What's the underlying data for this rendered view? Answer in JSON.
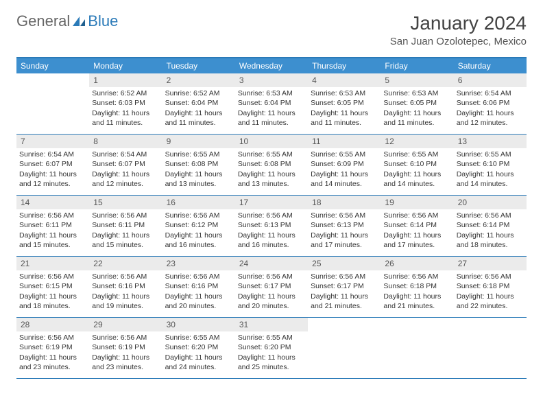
{
  "logo": {
    "general": "General",
    "blue": "Blue"
  },
  "title": "January 2024",
  "location": "San Juan Ozolotepec, Mexico",
  "colors": {
    "header_bg": "#3d8fcf",
    "border": "#2a7ab8",
    "daynum_bg": "#ebebeb",
    "text": "#333333",
    "header_text": "#ffffff"
  },
  "day_headers": [
    "Sunday",
    "Monday",
    "Tuesday",
    "Wednesday",
    "Thursday",
    "Friday",
    "Saturday"
  ],
  "weeks": [
    [
      {
        "n": "",
        "sr": "",
        "ss": "",
        "dl": ""
      },
      {
        "n": "1",
        "sr": "Sunrise: 6:52 AM",
        "ss": "Sunset: 6:03 PM",
        "dl": "Daylight: 11 hours and 11 minutes."
      },
      {
        "n": "2",
        "sr": "Sunrise: 6:52 AM",
        "ss": "Sunset: 6:04 PM",
        "dl": "Daylight: 11 hours and 11 minutes."
      },
      {
        "n": "3",
        "sr": "Sunrise: 6:53 AM",
        "ss": "Sunset: 6:04 PM",
        "dl": "Daylight: 11 hours and 11 minutes."
      },
      {
        "n": "4",
        "sr": "Sunrise: 6:53 AM",
        "ss": "Sunset: 6:05 PM",
        "dl": "Daylight: 11 hours and 11 minutes."
      },
      {
        "n": "5",
        "sr": "Sunrise: 6:53 AM",
        "ss": "Sunset: 6:05 PM",
        "dl": "Daylight: 11 hours and 11 minutes."
      },
      {
        "n": "6",
        "sr": "Sunrise: 6:54 AM",
        "ss": "Sunset: 6:06 PM",
        "dl": "Daylight: 11 hours and 12 minutes."
      }
    ],
    [
      {
        "n": "7",
        "sr": "Sunrise: 6:54 AM",
        "ss": "Sunset: 6:07 PM",
        "dl": "Daylight: 11 hours and 12 minutes."
      },
      {
        "n": "8",
        "sr": "Sunrise: 6:54 AM",
        "ss": "Sunset: 6:07 PM",
        "dl": "Daylight: 11 hours and 12 minutes."
      },
      {
        "n": "9",
        "sr": "Sunrise: 6:55 AM",
        "ss": "Sunset: 6:08 PM",
        "dl": "Daylight: 11 hours and 13 minutes."
      },
      {
        "n": "10",
        "sr": "Sunrise: 6:55 AM",
        "ss": "Sunset: 6:08 PM",
        "dl": "Daylight: 11 hours and 13 minutes."
      },
      {
        "n": "11",
        "sr": "Sunrise: 6:55 AM",
        "ss": "Sunset: 6:09 PM",
        "dl": "Daylight: 11 hours and 14 minutes."
      },
      {
        "n": "12",
        "sr": "Sunrise: 6:55 AM",
        "ss": "Sunset: 6:10 PM",
        "dl": "Daylight: 11 hours and 14 minutes."
      },
      {
        "n": "13",
        "sr": "Sunrise: 6:55 AM",
        "ss": "Sunset: 6:10 PM",
        "dl": "Daylight: 11 hours and 14 minutes."
      }
    ],
    [
      {
        "n": "14",
        "sr": "Sunrise: 6:56 AM",
        "ss": "Sunset: 6:11 PM",
        "dl": "Daylight: 11 hours and 15 minutes."
      },
      {
        "n": "15",
        "sr": "Sunrise: 6:56 AM",
        "ss": "Sunset: 6:11 PM",
        "dl": "Daylight: 11 hours and 15 minutes."
      },
      {
        "n": "16",
        "sr": "Sunrise: 6:56 AM",
        "ss": "Sunset: 6:12 PM",
        "dl": "Daylight: 11 hours and 16 minutes."
      },
      {
        "n": "17",
        "sr": "Sunrise: 6:56 AM",
        "ss": "Sunset: 6:13 PM",
        "dl": "Daylight: 11 hours and 16 minutes."
      },
      {
        "n": "18",
        "sr": "Sunrise: 6:56 AM",
        "ss": "Sunset: 6:13 PM",
        "dl": "Daylight: 11 hours and 17 minutes."
      },
      {
        "n": "19",
        "sr": "Sunrise: 6:56 AM",
        "ss": "Sunset: 6:14 PM",
        "dl": "Daylight: 11 hours and 17 minutes."
      },
      {
        "n": "20",
        "sr": "Sunrise: 6:56 AM",
        "ss": "Sunset: 6:14 PM",
        "dl": "Daylight: 11 hours and 18 minutes."
      }
    ],
    [
      {
        "n": "21",
        "sr": "Sunrise: 6:56 AM",
        "ss": "Sunset: 6:15 PM",
        "dl": "Daylight: 11 hours and 18 minutes."
      },
      {
        "n": "22",
        "sr": "Sunrise: 6:56 AM",
        "ss": "Sunset: 6:16 PM",
        "dl": "Daylight: 11 hours and 19 minutes."
      },
      {
        "n": "23",
        "sr": "Sunrise: 6:56 AM",
        "ss": "Sunset: 6:16 PM",
        "dl": "Daylight: 11 hours and 20 minutes."
      },
      {
        "n": "24",
        "sr": "Sunrise: 6:56 AM",
        "ss": "Sunset: 6:17 PM",
        "dl": "Daylight: 11 hours and 20 minutes."
      },
      {
        "n": "25",
        "sr": "Sunrise: 6:56 AM",
        "ss": "Sunset: 6:17 PM",
        "dl": "Daylight: 11 hours and 21 minutes."
      },
      {
        "n": "26",
        "sr": "Sunrise: 6:56 AM",
        "ss": "Sunset: 6:18 PM",
        "dl": "Daylight: 11 hours and 21 minutes."
      },
      {
        "n": "27",
        "sr": "Sunrise: 6:56 AM",
        "ss": "Sunset: 6:18 PM",
        "dl": "Daylight: 11 hours and 22 minutes."
      }
    ],
    [
      {
        "n": "28",
        "sr": "Sunrise: 6:56 AM",
        "ss": "Sunset: 6:19 PM",
        "dl": "Daylight: 11 hours and 23 minutes."
      },
      {
        "n": "29",
        "sr": "Sunrise: 6:56 AM",
        "ss": "Sunset: 6:19 PM",
        "dl": "Daylight: 11 hours and 23 minutes."
      },
      {
        "n": "30",
        "sr": "Sunrise: 6:55 AM",
        "ss": "Sunset: 6:20 PM",
        "dl": "Daylight: 11 hours and 24 minutes."
      },
      {
        "n": "31",
        "sr": "Sunrise: 6:55 AM",
        "ss": "Sunset: 6:20 PM",
        "dl": "Daylight: 11 hours and 25 minutes."
      },
      {
        "n": "",
        "sr": "",
        "ss": "",
        "dl": ""
      },
      {
        "n": "",
        "sr": "",
        "ss": "",
        "dl": ""
      },
      {
        "n": "",
        "sr": "",
        "ss": "",
        "dl": ""
      }
    ]
  ]
}
